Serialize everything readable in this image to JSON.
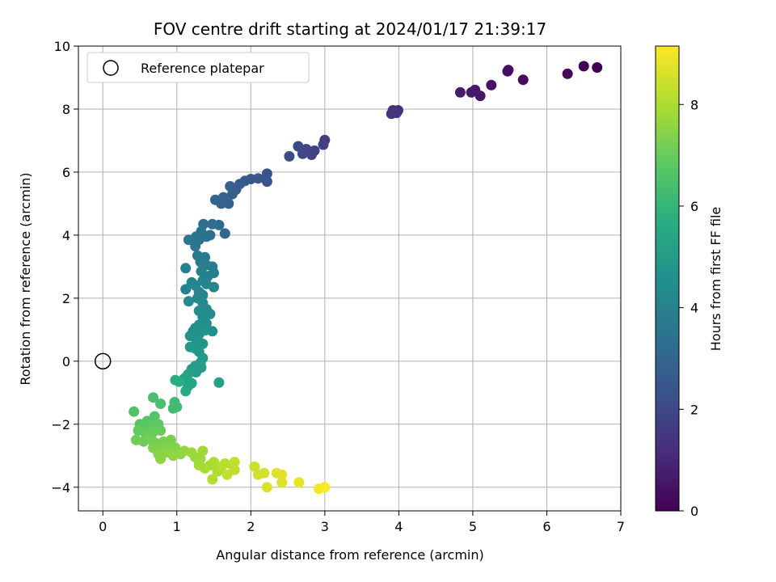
{
  "chart_data": {
    "type": "scatter",
    "title": "FOV centre drift starting at 2024/01/17 21:39:17",
    "xlabel": "Angular distance from reference (arcmin)",
    "ylabel": "Rotation from reference (arcmin)",
    "xlim": [
      -0.33,
      7.0
    ],
    "ylim": [
      -4.75,
      10.0
    ],
    "xticks": [
      0,
      1,
      2,
      3,
      4,
      5,
      6,
      7
    ],
    "yticks": [
      -4,
      -2,
      0,
      2,
      4,
      6,
      8,
      10
    ],
    "grid": true,
    "legend": {
      "placement": "upper-left",
      "entries": [
        {
          "label": "Reference platepar",
          "marker": "open-circle",
          "x": 0,
          "y": 0
        }
      ]
    },
    "colorbar": {
      "label": "Hours from first FF file",
      "range": [
        0,
        9.15
      ],
      "ticks": [
        0,
        2,
        4,
        6,
        8
      ],
      "colormap": "viridis"
    },
    "points": [
      {
        "x": 6.68,
        "y": 9.32,
        "t": 0.0
      },
      {
        "x": 6.5,
        "y": 9.36,
        "t": 0.08
      },
      {
        "x": 6.28,
        "y": 9.12,
        "t": 0.15
      },
      {
        "x": 5.68,
        "y": 8.93,
        "t": 0.25
      },
      {
        "x": 5.48,
        "y": 9.24,
        "t": 0.35
      },
      {
        "x": 5.47,
        "y": 9.2,
        "t": 0.4
      },
      {
        "x": 5.25,
        "y": 8.76,
        "t": 0.5
      },
      {
        "x": 5.1,
        "y": 8.42,
        "t": 0.58
      },
      {
        "x": 5.03,
        "y": 8.61,
        "t": 0.62
      },
      {
        "x": 4.98,
        "y": 8.53,
        "t": 0.66
      },
      {
        "x": 4.83,
        "y": 8.53,
        "t": 0.72
      },
      {
        "x": 3.99,
        "y": 7.96,
        "t": 1.2
      },
      {
        "x": 3.95,
        "y": 7.9,
        "t": 1.25
      },
      {
        "x": 3.92,
        "y": 7.96,
        "t": 1.3
      },
      {
        "x": 3.9,
        "y": 7.85,
        "t": 1.35
      },
      {
        "x": 3.97,
        "y": 7.88,
        "t": 1.4
      },
      {
        "x": 3.0,
        "y": 7.02,
        "t": 1.7
      },
      {
        "x": 2.98,
        "y": 6.87,
        "t": 1.75
      },
      {
        "x": 2.86,
        "y": 6.68,
        "t": 1.8
      },
      {
        "x": 2.82,
        "y": 6.55,
        "t": 1.85
      },
      {
        "x": 2.75,
        "y": 6.73,
        "t": 1.9
      },
      {
        "x": 2.7,
        "y": 6.58,
        "t": 1.95
      },
      {
        "x": 2.64,
        "y": 6.82,
        "t": 2.0
      },
      {
        "x": 2.52,
        "y": 6.5,
        "t": 2.1
      },
      {
        "x": 2.22,
        "y": 5.95,
        "t": 2.35
      },
      {
        "x": 2.22,
        "y": 5.7,
        "t": 2.4
      },
      {
        "x": 2.1,
        "y": 5.8,
        "t": 2.45
      },
      {
        "x": 2.0,
        "y": 5.78,
        "t": 2.5
      },
      {
        "x": 1.92,
        "y": 5.72,
        "t": 2.55
      },
      {
        "x": 1.85,
        "y": 5.62,
        "t": 2.6
      },
      {
        "x": 1.8,
        "y": 5.45,
        "t": 2.65
      },
      {
        "x": 1.75,
        "y": 5.3,
        "t": 2.7
      },
      {
        "x": 1.72,
        "y": 5.55,
        "t": 2.75
      },
      {
        "x": 1.7,
        "y": 5.0,
        "t": 2.8
      },
      {
        "x": 1.63,
        "y": 5.2,
        "t": 2.85
      },
      {
        "x": 1.6,
        "y": 5.0,
        "t": 2.9
      },
      {
        "x": 1.52,
        "y": 5.12,
        "t": 2.95
      },
      {
        "x": 1.65,
        "y": 4.05,
        "t": 3.1
      },
      {
        "x": 1.57,
        "y": 4.32,
        "t": 3.15
      },
      {
        "x": 1.48,
        "y": 4.35,
        "t": 3.2
      },
      {
        "x": 1.45,
        "y": 4.0,
        "t": 3.25
      },
      {
        "x": 1.4,
        "y": 3.95,
        "t": 3.3
      },
      {
        "x": 1.36,
        "y": 4.35,
        "t": 3.35
      },
      {
        "x": 1.33,
        "y": 4.12,
        "t": 3.4
      },
      {
        "x": 1.3,
        "y": 3.85,
        "t": 3.45
      },
      {
        "x": 1.26,
        "y": 3.95,
        "t": 3.5
      },
      {
        "x": 1.25,
        "y": 3.65,
        "t": 3.55
      },
      {
        "x": 1.16,
        "y": 3.85,
        "t": 3.6
      },
      {
        "x": 1.38,
        "y": 3.3,
        "t": 3.65
      },
      {
        "x": 1.28,
        "y": 3.35,
        "t": 3.7
      },
      {
        "x": 1.48,
        "y": 3.0,
        "t": 3.75
      },
      {
        "x": 1.4,
        "y": 3.05,
        "t": 3.8
      },
      {
        "x": 1.32,
        "y": 3.15,
        "t": 3.85
      },
      {
        "x": 1.5,
        "y": 2.8,
        "t": 3.9
      },
      {
        "x": 1.42,
        "y": 2.7,
        "t": 3.95
      },
      {
        "x": 1.33,
        "y": 2.85,
        "t": 4.0
      },
      {
        "x": 1.12,
        "y": 2.95,
        "t": 4.0
      },
      {
        "x": 1.12,
        "y": 2.28,
        "t": 4.05
      },
      {
        "x": 1.2,
        "y": 2.5,
        "t": 4.05
      },
      {
        "x": 1.25,
        "y": 2.4,
        "t": 4.1
      },
      {
        "x": 1.35,
        "y": 2.55,
        "t": 4.1
      },
      {
        "x": 1.4,
        "y": 2.45,
        "t": 4.15
      },
      {
        "x": 1.5,
        "y": 2.35,
        "t": 4.15
      },
      {
        "x": 1.3,
        "y": 2.2,
        "t": 4.2
      },
      {
        "x": 1.35,
        "y": 2.1,
        "t": 4.2
      },
      {
        "x": 1.28,
        "y": 2.0,
        "t": 4.25
      },
      {
        "x": 1.35,
        "y": 1.85,
        "t": 4.3
      },
      {
        "x": 1.16,
        "y": 1.9,
        "t": 4.3
      },
      {
        "x": 1.4,
        "y": 1.65,
        "t": 4.35
      },
      {
        "x": 1.3,
        "y": 1.6,
        "t": 4.4
      },
      {
        "x": 1.45,
        "y": 1.5,
        "t": 4.4
      },
      {
        "x": 1.35,
        "y": 1.4,
        "t": 4.45
      },
      {
        "x": 1.4,
        "y": 1.2,
        "t": 4.5
      },
      {
        "x": 1.3,
        "y": 1.15,
        "t": 4.5
      },
      {
        "x": 1.25,
        "y": 1.05,
        "t": 4.55
      },
      {
        "x": 1.48,
        "y": 0.95,
        "t": 4.55
      },
      {
        "x": 1.38,
        "y": 0.98,
        "t": 4.6
      },
      {
        "x": 1.3,
        "y": 0.85,
        "t": 4.6
      },
      {
        "x": 1.22,
        "y": 0.95,
        "t": 4.65
      },
      {
        "x": 1.18,
        "y": 0.8,
        "t": 4.7
      },
      {
        "x": 1.26,
        "y": 0.7,
        "t": 4.7
      },
      {
        "x": 1.35,
        "y": 0.55,
        "t": 4.75
      },
      {
        "x": 1.25,
        "y": 0.4,
        "t": 4.8
      },
      {
        "x": 1.18,
        "y": 0.45,
        "t": 4.8
      },
      {
        "x": 1.3,
        "y": 0.3,
        "t": 4.85
      },
      {
        "x": 1.35,
        "y": 0.1,
        "t": 4.9
      },
      {
        "x": 1.32,
        "y": -0.05,
        "t": 4.95
      },
      {
        "x": 1.25,
        "y": -0.15,
        "t": 5.0
      },
      {
        "x": 1.33,
        "y": -0.2,
        "t": 5.0
      },
      {
        "x": 1.2,
        "y": -0.25,
        "t": 5.05
      },
      {
        "x": 1.26,
        "y": -0.35,
        "t": 5.1
      },
      {
        "x": 1.57,
        "y": -0.68,
        "t": 5.15
      },
      {
        "x": 1.15,
        "y": -0.42,
        "t": 5.2
      },
      {
        "x": 1.1,
        "y": -0.55,
        "t": 5.3
      },
      {
        "x": 1.2,
        "y": -0.7,
        "t": 5.35
      },
      {
        "x": 1.15,
        "y": -0.8,
        "t": 5.45
      },
      {
        "x": 1.12,
        "y": -0.95,
        "t": 5.55
      },
      {
        "x": 0.98,
        "y": -0.6,
        "t": 5.7
      },
      {
        "x": 1.03,
        "y": -0.65,
        "t": 5.75
      },
      {
        "x": 0.97,
        "y": -1.3,
        "t": 6.2
      },
      {
        "x": 1.0,
        "y": -1.45,
        "t": 6.25
      },
      {
        "x": 0.95,
        "y": -1.5,
        "t": 6.3
      },
      {
        "x": 0.68,
        "y": -1.15,
        "t": 6.4
      },
      {
        "x": 0.78,
        "y": -1.35,
        "t": 6.45
      },
      {
        "x": 0.42,
        "y": -1.6,
        "t": 6.55
      },
      {
        "x": 0.7,
        "y": -1.75,
        "t": 6.6
      },
      {
        "x": 0.6,
        "y": -1.9,
        "t": 6.65
      },
      {
        "x": 0.5,
        "y": -2.0,
        "t": 6.7
      },
      {
        "x": 0.55,
        "y": -2.1,
        "t": 6.75
      },
      {
        "x": 0.65,
        "y": -2.05,
        "t": 6.8
      },
      {
        "x": 0.75,
        "y": -2.0,
        "t": 6.85
      },
      {
        "x": 0.48,
        "y": -2.2,
        "t": 6.9
      },
      {
        "x": 0.58,
        "y": -2.3,
        "t": 6.95
      },
      {
        "x": 0.68,
        "y": -2.25,
        "t": 7.0
      },
      {
        "x": 0.78,
        "y": -2.2,
        "t": 7.0
      },
      {
        "x": 0.62,
        "y": -2.4,
        "t": 7.05
      },
      {
        "x": 0.45,
        "y": -2.5,
        "t": 7.1
      },
      {
        "x": 0.55,
        "y": -2.55,
        "t": 7.1
      },
      {
        "x": 0.66,
        "y": -2.5,
        "t": 7.15
      },
      {
        "x": 0.72,
        "y": -2.6,
        "t": 7.2
      },
      {
        "x": 0.82,
        "y": -2.55,
        "t": 7.25
      },
      {
        "x": 0.92,
        "y": -2.5,
        "t": 7.25
      },
      {
        "x": 0.68,
        "y": -2.75,
        "t": 7.3
      },
      {
        "x": 0.78,
        "y": -2.8,
        "t": 7.35
      },
      {
        "x": 0.9,
        "y": -2.7,
        "t": 7.35
      },
      {
        "x": 0.98,
        "y": -2.75,
        "t": 7.4
      },
      {
        "x": 0.75,
        "y": -2.95,
        "t": 7.45
      },
      {
        "x": 0.85,
        "y": -2.9,
        "t": 7.5
      },
      {
        "x": 0.78,
        "y": -3.1,
        "t": 7.55
      },
      {
        "x": 0.95,
        "y": -3.0,
        "t": 7.6
      },
      {
        "x": 1.05,
        "y": -2.95,
        "t": 7.6
      },
      {
        "x": 1.1,
        "y": -2.85,
        "t": 7.65
      },
      {
        "x": 1.2,
        "y": -2.9,
        "t": 7.7
      },
      {
        "x": 1.25,
        "y": -3.05,
        "t": 7.75
      },
      {
        "x": 1.32,
        "y": -3.1,
        "t": 7.8
      },
      {
        "x": 1.35,
        "y": -2.85,
        "t": 7.8
      },
      {
        "x": 1.3,
        "y": -3.3,
        "t": 7.85
      },
      {
        "x": 1.38,
        "y": -3.4,
        "t": 7.9
      },
      {
        "x": 1.45,
        "y": -3.3,
        "t": 7.95
      },
      {
        "x": 1.5,
        "y": -3.2,
        "t": 8.0
      },
      {
        "x": 1.55,
        "y": -3.5,
        "t": 8.05
      },
      {
        "x": 1.48,
        "y": -3.75,
        "t": 8.1
      },
      {
        "x": 1.6,
        "y": -3.35,
        "t": 8.1
      },
      {
        "x": 1.65,
        "y": -3.25,
        "t": 8.15
      },
      {
        "x": 1.75,
        "y": -3.3,
        "t": 8.2
      },
      {
        "x": 1.78,
        "y": -3.45,
        "t": 8.25
      },
      {
        "x": 1.68,
        "y": -3.6,
        "t": 8.3
      },
      {
        "x": 1.78,
        "y": -3.2,
        "t": 8.3
      },
      {
        "x": 2.05,
        "y": -3.35,
        "t": 8.45
      },
      {
        "x": 2.1,
        "y": -3.6,
        "t": 8.5
      },
      {
        "x": 2.18,
        "y": -3.55,
        "t": 8.55
      },
      {
        "x": 2.22,
        "y": -4.0,
        "t": 8.6
      },
      {
        "x": 2.35,
        "y": -3.55,
        "t": 8.65
      },
      {
        "x": 2.42,
        "y": -3.85,
        "t": 8.7
      },
      {
        "x": 2.42,
        "y": -3.6,
        "t": 8.75
      },
      {
        "x": 2.65,
        "y": -3.85,
        "t": 8.85
      },
      {
        "x": 2.92,
        "y": -4.05,
        "t": 9.0
      },
      {
        "x": 3.0,
        "y": -4.0,
        "t": 9.1
      }
    ]
  }
}
